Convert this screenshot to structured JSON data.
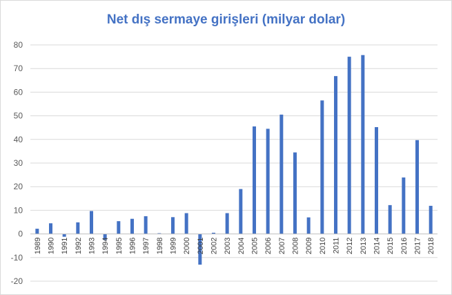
{
  "chart_data": {
    "type": "bar",
    "title": "Net dış sermaye girişleri (milyar dolar)",
    "xlabel": "",
    "ylabel": "",
    "categories": [
      "1989",
      "1990",
      "1991",
      "1992",
      "1993",
      "1994",
      "1995",
      "1996",
      "1997",
      "1998",
      "1999",
      "2000",
      "2001",
      "2002",
      "2003",
      "2004",
      "2005",
      "2006",
      "2007",
      "2008",
      "2009",
      "2010",
      "2011",
      "2012",
      "2013",
      "2014",
      "2015",
      "2016",
      "2017",
      "2018"
    ],
    "values": [
      2.2,
      4.5,
      -1.2,
      4.9,
      9.7,
      -2.6,
      5.4,
      6.4,
      7.5,
      0.3,
      7.1,
      8.8,
      -13.0,
      0.5,
      8.8,
      19.0,
      45.5,
      44.5,
      50.5,
      34.5,
      7.0,
      56.5,
      66.8,
      75.0,
      75.7,
      45.2,
      12.2,
      23.9,
      39.7,
      11.9
    ],
    "ylim": [
      -20,
      80
    ],
    "yticks": [
      -20,
      -10,
      0,
      10,
      20,
      30,
      40,
      50,
      60,
      70,
      80
    ],
    "grid": true,
    "bar_color": "#4472c4",
    "grid_color": "#d9d9d9"
  }
}
